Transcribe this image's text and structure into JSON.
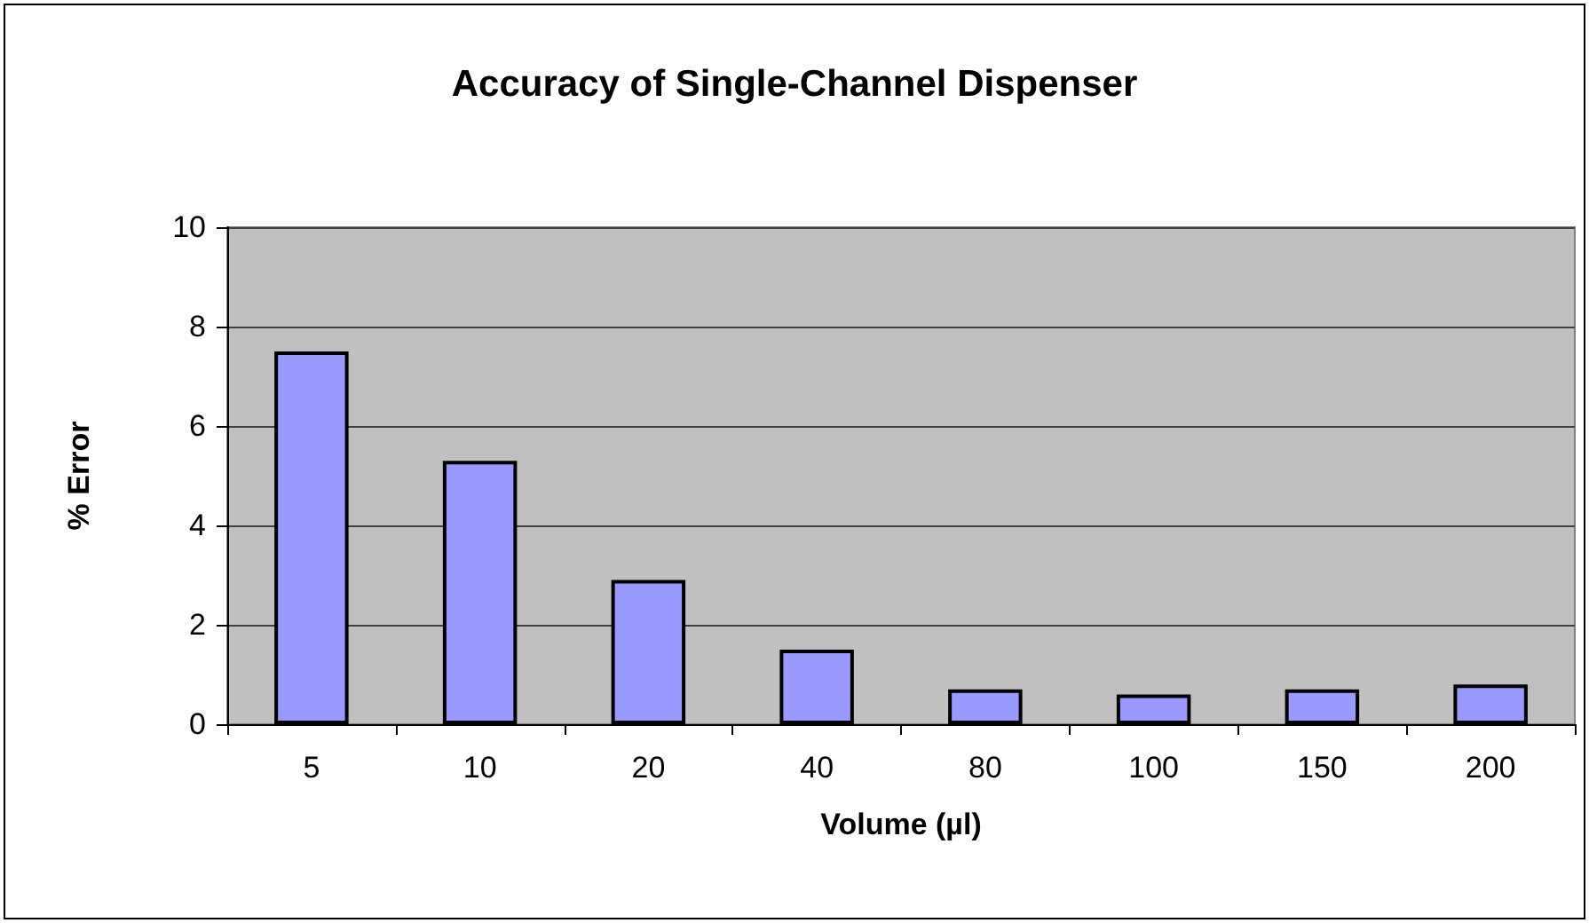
{
  "chart_data": {
    "type": "bar",
    "title": "Accuracy of Single-Channel Dispenser",
    "xlabel": "Volume (µl)",
    "ylabel": "% Error",
    "categories": [
      "5",
      "10",
      "20",
      "40",
      "80",
      "100",
      "150",
      "200"
    ],
    "values": [
      7.5,
      5.3,
      2.9,
      1.5,
      0.7,
      0.6,
      0.7,
      0.8
    ],
    "color": "#9999ff",
    "ylim": [
      0,
      10
    ],
    "yticks": [
      0,
      2,
      4,
      6,
      8,
      10
    ],
    "grid": "y"
  }
}
